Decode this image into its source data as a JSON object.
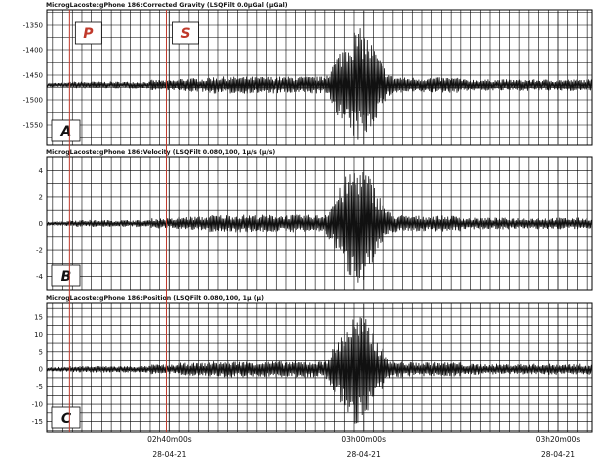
{
  "chart_data": [
    {
      "type": "line",
      "title": "MicrogLacoste:gPhone 186:Corrected Gravity (LSQFilt 0.0µGal (µGal)",
      "panel_label": "A",
      "ylim": [
        -1590,
        -1320
      ],
      "yticks": [
        -1550,
        -1500,
        -1450,
        -1400,
        -1350
      ],
      "baseline": -1470,
      "amp_scale": 115,
      "grid": true,
      "series": [
        {
          "values": []
        }
      ]
    },
    {
      "type": "line",
      "title": "MicrogLacoste:gPhone 186:Velocity (LSQFilt 0.080,100, 1µ/s (µ/s)",
      "panel_label": "B",
      "ylim": [
        -5,
        5
      ],
      "yticks": [
        -4,
        -2,
        0,
        2,
        4
      ],
      "baseline": 0,
      "amp_scale": 4.5,
      "grid": true,
      "series": [
        {
          "values": []
        }
      ]
    },
    {
      "type": "line",
      "title": "MicrogLacoste:gPhone 186:Position (LSQFilt 0.080,100, 1µ (µ)",
      "panel_label": "C",
      "ylim": [
        -18,
        19
      ],
      "yticks": [
        -15,
        -10,
        -5,
        0,
        5,
        10,
        15
      ],
      "baseline": 0,
      "amp_scale": 16,
      "grid": true,
      "series": [
        {
          "values": []
        }
      ]
    }
  ],
  "x_axis": {
    "range_minutes": [
      -12.6,
      43.5
    ],
    "ticks": [
      {
        "minute": 0,
        "time": "02h40m00s",
        "date": "28-04-21"
      },
      {
        "minute": 20,
        "time": "03h00m00s",
        "date": "28-04-21"
      },
      {
        "minute": 40,
        "time": "03h20m00s",
        "date": "28-04-21"
      }
    ]
  },
  "phase_markers": [
    {
      "label": "P",
      "minute": -10.3,
      "color": "#c0392b"
    },
    {
      "label": "S",
      "minute": -0.3,
      "color": "#c0392b"
    }
  ],
  "colors": {
    "trace": "#111111",
    "grid": "#000000",
    "marker": "#c0392b"
  }
}
